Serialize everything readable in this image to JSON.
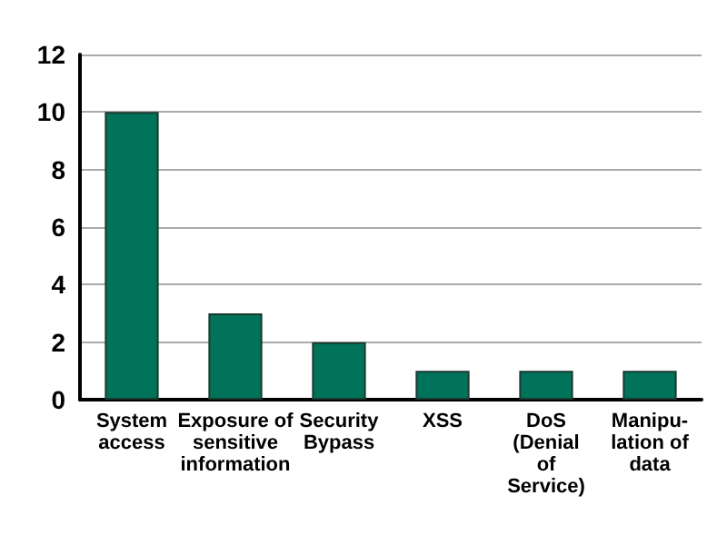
{
  "chart_data": {
    "type": "bar",
    "categories": [
      "System\naccess",
      "Exposure of\nsensitive\ninformation",
      "Security\nBypass",
      "XSS",
      "DoS\n(Denial\nof\nService)",
      "Manipu-\nlation of\ndata"
    ],
    "values": [
      10,
      3,
      2,
      1,
      1,
      1
    ],
    "color": "#00735a",
    "ylim": [
      0,
      12
    ],
    "yticks": [
      0,
      2,
      4,
      6,
      8,
      10,
      12
    ],
    "grid": "y"
  }
}
